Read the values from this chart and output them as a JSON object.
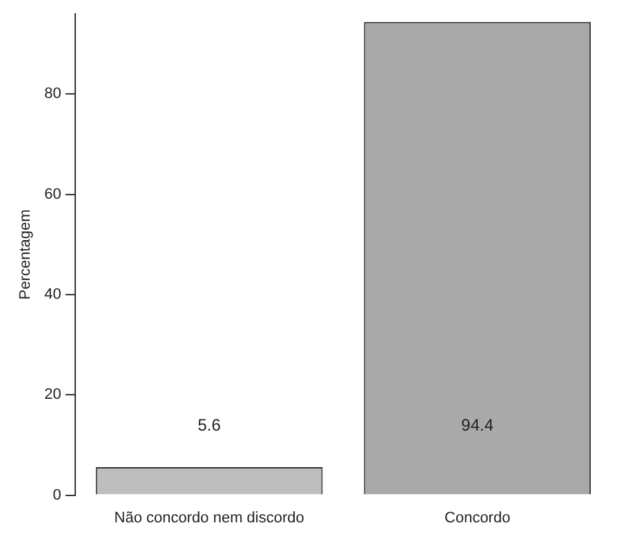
{
  "chart_data": {
    "type": "bar",
    "ylabel": "Percentagem",
    "categories": [
      "Não concordo nem discordo",
      "Concordo"
    ],
    "values": [
      5.6,
      94.4
    ],
    "colors": [
      "#bebebe",
      "#a9a9a9"
    ],
    "ylim": [
      0,
      96
    ],
    "yticks": [
      0,
      20,
      40,
      60,
      80
    ],
    "grid": false,
    "legend": false,
    "data_labels": true
  }
}
